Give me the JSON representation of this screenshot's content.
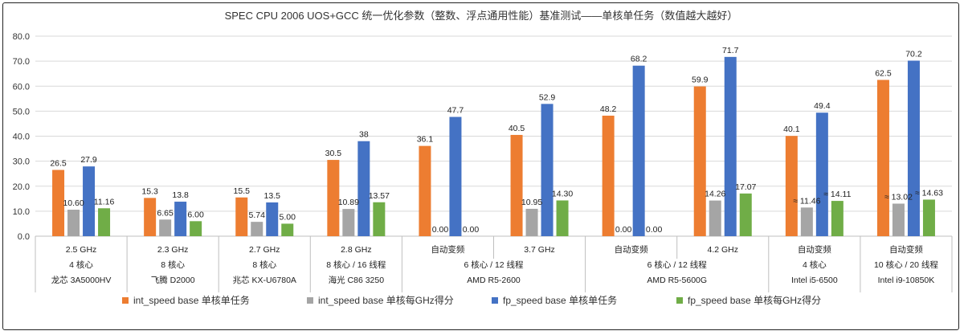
{
  "chart_data": {
    "type": "bar",
    "title": "SPEC CPU 2006 UOS+GCC 统一优化参数（整数、浮点通用性能）基准测试——单核单任务（数值越大越好）",
    "ylim": [
      0,
      80
    ],
    "yticks": [
      "0.0",
      "10.0",
      "20.0",
      "30.0",
      "40.0",
      "50.0",
      "60.0",
      "70.0",
      "80.0"
    ],
    "grid": true,
    "legend_position": "bottom",
    "categories": [
      [
        "2.5 GHz",
        "4 核心",
        "龙芯 3A5000HV"
      ],
      [
        "2.3 GHz",
        "8 核心",
        "飞腾 D2000"
      ],
      [
        "2.7 GHz",
        "8 核心",
        "兆芯 KX-U6780A"
      ],
      [
        "2.8 GHz",
        "8 核心 / 16 线程",
        "海光 C86 3250"
      ],
      [
        "自动变频",
        "",
        ""
      ],
      [
        "3.7 GHz",
        "",
        ""
      ],
      [
        "自动变频",
        "",
        ""
      ],
      [
        "4.2 GHz",
        "",
        ""
      ],
      [
        "自动变频",
        "4 核心",
        "Intel i5-6500"
      ],
      [
        "自动变频",
        "10 核心 / 20 线程",
        "Intel i9-10850K"
      ]
    ],
    "group_labels": [
      {
        "from": 4,
        "to": 5,
        "lines": [
          "6 核心 / 12 线程",
          "AMD R5-2600"
        ]
      },
      {
        "from": 6,
        "to": 7,
        "lines": [
          "6 核心 / 12 线程",
          "AMD R5-5600G"
        ]
      }
    ],
    "series": [
      {
        "name": "int_speed base 单核单任务",
        "color": "#ED7D31",
        "values": [
          26.5,
          15.3,
          15.5,
          30.5,
          36.1,
          40.5,
          48.2,
          59.9,
          40.1,
          62.5
        ],
        "labels": [
          "26.5",
          "15.3",
          "15.5",
          "30.5",
          "36.1",
          "40.5",
          "48.2",
          "59.9",
          "40.1",
          "62.5"
        ]
      },
      {
        "name": "int_speed base 单核每GHz得分",
        "color": "#A5A5A5",
        "values": [
          10.6,
          6.65,
          5.74,
          10.89,
          0,
          10.95,
          0,
          14.26,
          11.46,
          13.02
        ],
        "labels": [
          "10.60",
          "6.65",
          "5.74",
          "10.89",
          "0.00",
          "10.95",
          "0.00",
          "14.26",
          "≈ 11.46",
          "≈ 13.02"
        ]
      },
      {
        "name": "fp_speed base 单核单任务",
        "color": "#4472C4",
        "values": [
          27.9,
          13.8,
          13.5,
          38,
          47.7,
          52.9,
          68.2,
          71.7,
          49.4,
          70.2
        ],
        "labels": [
          "27.9",
          "13.8",
          "13.5",
          "38",
          "47.7",
          "52.9",
          "68.2",
          "71.7",
          "49.4",
          "70.2"
        ]
      },
      {
        "name": "fp_speed base 单核每GHz得分",
        "color": "#70AD47",
        "values": [
          11.16,
          6.0,
          5.0,
          13.57,
          0,
          14.3,
          0,
          17.07,
          14.11,
          14.63
        ],
        "labels": [
          "11.16",
          "6.00",
          "5.00",
          "13.57",
          "0.00",
          "14.30",
          "0.00",
          "17.07",
          "≈ 14.11",
          "≈ 14.63"
        ]
      }
    ]
  }
}
